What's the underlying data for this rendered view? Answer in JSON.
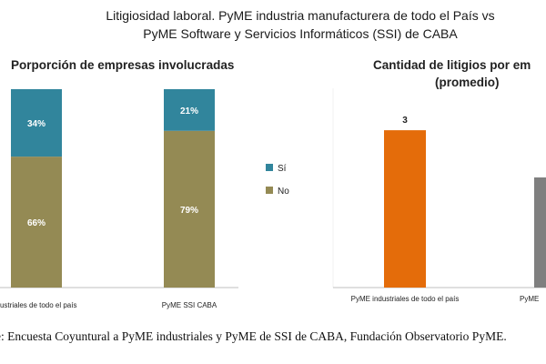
{
  "header": {
    "title_line1": "Litigiosidad laboral. PyME industria manufacturera de todo el País vs",
    "title_line2": "PyME Software y Servicios Informáticos (SSI) de CABA"
  },
  "source_note": "e: Encuesta Coyuntural a PyME industriales y PyME de SSI de CABA, Fundación Observatorio PyME.",
  "chart_data": [
    {
      "type": "bar",
      "stacked": true,
      "title": "Porporción de empresas involucradas",
      "categories": [
        "dustriales de todo el país",
        "PyME SSI CABA"
      ],
      "series": [
        {
          "name": "Sí",
          "values": [
            34,
            21
          ],
          "labels": [
            "34%",
            "21%"
          ],
          "color": "#31859c"
        },
        {
          "name": "No",
          "values": [
            66,
            79
          ],
          "labels": [
            "66%",
            "79%"
          ],
          "color": "#948a54"
        }
      ],
      "ylim": [
        0,
        100
      ],
      "legend_position": "right",
      "grid": false
    },
    {
      "type": "bar",
      "title_line1": "Cantidad de litigios por em",
      "title_line2": "(promedio)",
      "categories": [
        "PyME industriales de todo el país",
        "PyME"
      ],
      "values": [
        3,
        2.1
      ],
      "value_labels": [
        "3",
        ""
      ],
      "colors": [
        "#e46c0a",
        "#7f7f7f"
      ],
      "grid": false
    }
  ]
}
